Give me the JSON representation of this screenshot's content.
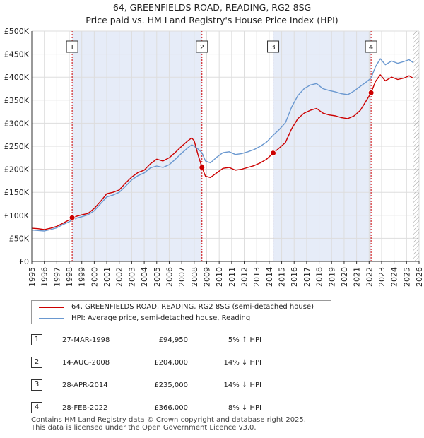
{
  "chart_data": {
    "type": "line",
    "title": "64, GREENFIELDS ROAD, READING, RG2 8SG",
    "subtitle": "Price paid vs. HM Land Registry's House Price Index (HPI)",
    "xlim": [
      1995,
      2026
    ],
    "ylim": [
      0,
      500000
    ],
    "x_ticks": [
      "1995",
      "1996",
      "1997",
      "1998",
      "1999",
      "2000",
      "2001",
      "2002",
      "2003",
      "2004",
      "2005",
      "2006",
      "2007",
      "2008",
      "2009",
      "2010",
      "2011",
      "2012",
      "2013",
      "2014",
      "2015",
      "2016",
      "2017",
      "2018",
      "2019",
      "2020",
      "2021",
      "2022",
      "2023",
      "2024",
      "2025",
      "2026"
    ],
    "y_ticks": [
      {
        "value": 0,
        "label": "£0"
      },
      {
        "value": 50000,
        "label": "£50K"
      },
      {
        "value": 100000,
        "label": "£100K"
      },
      {
        "value": 150000,
        "label": "£150K"
      },
      {
        "value": 200000,
        "label": "£200K"
      },
      {
        "value": 250000,
        "label": "£250K"
      },
      {
        "value": 300000,
        "label": "£300K"
      },
      {
        "value": 350000,
        "label": "£350K"
      },
      {
        "value": 400000,
        "label": "£400K"
      },
      {
        "value": 450000,
        "label": "£450K"
      },
      {
        "value": 500000,
        "label": "£500K"
      }
    ],
    "series": [
      {
        "name": "64, GREENFIELDS ROAD, READING, RG2 8SG (semi-detached house)",
        "color": "#cc0000",
        "points": [
          [
            1995.0,
            72000
          ],
          [
            1995.5,
            71000
          ],
          [
            1996.0,
            69000
          ],
          [
            1996.5,
            72000
          ],
          [
            1997.0,
            76000
          ],
          [
            1997.5,
            83000
          ],
          [
            1998.0,
            90000
          ],
          [
            1998.23,
            94950
          ],
          [
            1998.6,
            98000
          ],
          [
            1999.0,
            101000
          ],
          [
            1999.5,
            104000
          ],
          [
            2000.0,
            115000
          ],
          [
            2000.5,
            130000
          ],
          [
            2001.0,
            147000
          ],
          [
            2001.5,
            150000
          ],
          [
            2002.0,
            155000
          ],
          [
            2002.5,
            170000
          ],
          [
            2003.0,
            183000
          ],
          [
            2003.5,
            193000
          ],
          [
            2004.0,
            198000
          ],
          [
            2004.5,
            212000
          ],
          [
            2005.0,
            222000
          ],
          [
            2005.5,
            218000
          ],
          [
            2006.0,
            225000
          ],
          [
            2006.5,
            237000
          ],
          [
            2007.0,
            250000
          ],
          [
            2007.5,
            262000
          ],
          [
            2007.8,
            268000
          ],
          [
            2008.0,
            262000
          ],
          [
            2008.3,
            232000
          ],
          [
            2008.62,
            204000
          ],
          [
            2008.9,
            185000
          ],
          [
            2009.3,
            182000
          ],
          [
            2009.8,
            192000
          ],
          [
            2010.3,
            202000
          ],
          [
            2010.8,
            204000
          ],
          [
            2011.3,
            198000
          ],
          [
            2011.8,
            200000
          ],
          [
            2012.3,
            204000
          ],
          [
            2012.8,
            208000
          ],
          [
            2013.3,
            214000
          ],
          [
            2013.8,
            222000
          ],
          [
            2014.32,
            235000
          ],
          [
            2014.8,
            246000
          ],
          [
            2015.3,
            258000
          ],
          [
            2015.8,
            288000
          ],
          [
            2016.3,
            310000
          ],
          [
            2016.8,
            322000
          ],
          [
            2017.3,
            328000
          ],
          [
            2017.8,
            332000
          ],
          [
            2018.3,
            322000
          ],
          [
            2018.8,
            318000
          ],
          [
            2019.3,
            316000
          ],
          [
            2019.8,
            312000
          ],
          [
            2020.3,
            310000
          ],
          [
            2020.8,
            316000
          ],
          [
            2021.3,
            328000
          ],
          [
            2021.8,
            350000
          ],
          [
            2022.16,
            366000
          ],
          [
            2022.5,
            390000
          ],
          [
            2022.9,
            405000
          ],
          [
            2023.3,
            392000
          ],
          [
            2023.8,
            400000
          ],
          [
            2024.3,
            395000
          ],
          [
            2024.8,
            398000
          ],
          [
            2025.2,
            403000
          ],
          [
            2025.5,
            398000
          ]
        ]
      },
      {
        "name": "HPI: Average price, semi-detached house, Reading",
        "color": "#6a98d0",
        "points": [
          [
            1995.0,
            68000
          ],
          [
            1995.5,
            67000
          ],
          [
            1996.0,
            66000
          ],
          [
            1996.5,
            69000
          ],
          [
            1997.0,
            73000
          ],
          [
            1997.5,
            80000
          ],
          [
            1998.0,
            86000
          ],
          [
            1998.23,
            90000
          ],
          [
            1998.6,
            94000
          ],
          [
            1999.0,
            97000
          ],
          [
            1999.5,
            101000
          ],
          [
            2000.0,
            110000
          ],
          [
            2000.5,
            125000
          ],
          [
            2001.0,
            140000
          ],
          [
            2001.5,
            144000
          ],
          [
            2002.0,
            150000
          ],
          [
            2002.5,
            163000
          ],
          [
            2003.0,
            177000
          ],
          [
            2003.5,
            186000
          ],
          [
            2004.0,
            192000
          ],
          [
            2004.5,
            203000
          ],
          [
            2005.0,
            207000
          ],
          [
            2005.5,
            204000
          ],
          [
            2006.0,
            210000
          ],
          [
            2006.5,
            222000
          ],
          [
            2007.0,
            235000
          ],
          [
            2007.5,
            247000
          ],
          [
            2007.8,
            253000
          ],
          [
            2008.0,
            250000
          ],
          [
            2008.3,
            244000
          ],
          [
            2008.62,
            236000
          ],
          [
            2008.9,
            218000
          ],
          [
            2009.3,
            214000
          ],
          [
            2009.8,
            226000
          ],
          [
            2010.3,
            236000
          ],
          [
            2010.8,
            238000
          ],
          [
            2011.3,
            232000
          ],
          [
            2011.8,
            234000
          ],
          [
            2012.3,
            238000
          ],
          [
            2012.8,
            243000
          ],
          [
            2013.3,
            250000
          ],
          [
            2013.8,
            259000
          ],
          [
            2014.32,
            274000
          ],
          [
            2014.8,
            286000
          ],
          [
            2015.3,
            301000
          ],
          [
            2015.8,
            335000
          ],
          [
            2016.3,
            360000
          ],
          [
            2016.8,
            375000
          ],
          [
            2017.3,
            383000
          ],
          [
            2017.8,
            386000
          ],
          [
            2018.3,
            375000
          ],
          [
            2018.8,
            371000
          ],
          [
            2019.3,
            368000
          ],
          [
            2019.8,
            364000
          ],
          [
            2020.3,
            362000
          ],
          [
            2020.8,
            370000
          ],
          [
            2021.3,
            380000
          ],
          [
            2021.8,
            390000
          ],
          [
            2022.16,
            398000
          ],
          [
            2022.5,
            422000
          ],
          [
            2022.9,
            440000
          ],
          [
            2023.3,
            427000
          ],
          [
            2023.8,
            435000
          ],
          [
            2024.3,
            430000
          ],
          [
            2024.8,
            434000
          ],
          [
            2025.2,
            438000
          ],
          [
            2025.5,
            432000
          ]
        ]
      }
    ],
    "bands": [
      {
        "from": 1998.23,
        "to": 2008.62
      },
      {
        "from": 2014.32,
        "to": 2022.16
      }
    ],
    "hatched_from": 2025.5,
    "markers": [
      {
        "id": "1",
        "x": 1998.23,
        "y": 94950
      },
      {
        "id": "2",
        "x": 2008.62,
        "y": 204000
      },
      {
        "id": "3",
        "x": 2014.32,
        "y": 235000
      },
      {
        "id": "4",
        "x": 2022.16,
        "y": 366000
      }
    ]
  },
  "legend": {
    "property_label": "64, GREENFIELDS ROAD, READING, RG2 8SG (semi-detached house)",
    "hpi_label": "HPI: Average price, semi-detached house, Reading"
  },
  "sales": [
    {
      "num": "1",
      "date": "27-MAR-1998",
      "price": "£94,950",
      "hpi": "5% ↑ HPI"
    },
    {
      "num": "2",
      "date": "14-AUG-2008",
      "price": "£204,000",
      "hpi": "14% ↓ HPI"
    },
    {
      "num": "3",
      "date": "28-APR-2014",
      "price": "£235,000",
      "hpi": "14% ↓ HPI"
    },
    {
      "num": "4",
      "date": "28-FEB-2022",
      "price": "£366,000",
      "hpi": "8% ↓ HPI"
    }
  ],
  "footer": {
    "line1": "Contains HM Land Registry data © Crown copyright and database right 2025.",
    "line2": "This data is licensed under the Open Government Licence v3.0."
  },
  "colors": {
    "property": "#cc0000",
    "hpi": "#6a98d0",
    "band": "#e6ecf8",
    "grid": "#dddddd"
  }
}
